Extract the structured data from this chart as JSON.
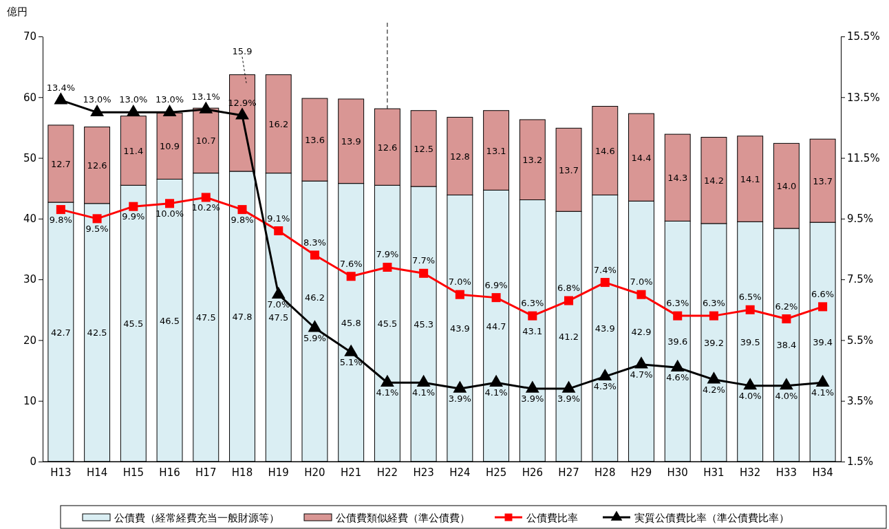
{
  "chart_data": {
    "type": "bar",
    "stacked": true,
    "ylabel": "億円",
    "categories": [
      "H13",
      "H14",
      "H15",
      "H16",
      "H17",
      "H18",
      "H19",
      "H20",
      "H21",
      "H22",
      "H23",
      "H24",
      "H25",
      "H26",
      "H27",
      "H28",
      "H29",
      "H30",
      "H31",
      "H32",
      "H33",
      "H34"
    ],
    "ylim": [
      0,
      70
    ],
    "yticks": [
      0,
      10,
      20,
      30,
      40,
      50,
      60,
      70
    ],
    "y2lim": [
      1.5,
      15.5
    ],
    "y2ticks": [
      {
        "value": 1.5,
        "label": "1.5%"
      },
      {
        "value": 3.5,
        "label": "3.5%"
      },
      {
        "value": 5.5,
        "label": "5.5%"
      },
      {
        "value": 7.5,
        "label": "7.5%"
      },
      {
        "value": 9.5,
        "label": "9.5%"
      },
      {
        "value": 11.5,
        "label": "11.5%"
      },
      {
        "value": 13.5,
        "label": "13.5%"
      },
      {
        "value": 15.5,
        "label": "15.5%"
      }
    ],
    "legend": "bottom",
    "grid": false,
    "ref_lines": [
      {
        "axis": "x",
        "value": "H22",
        "line_style": "dashed",
        "color": "#000000"
      }
    ],
    "series": [
      {
        "name": "公債費（経常経費充当一般財源等）",
        "color": "#daeef3",
        "values": [
          42.7,
          42.5,
          45.5,
          46.5,
          47.5,
          47.8,
          47.5,
          46.2,
          45.8,
          45.5,
          45.3,
          43.9,
          44.7,
          43.1,
          41.2,
          43.9,
          42.9,
          39.6,
          39.2,
          39.5,
          38.4,
          39.4
        ],
        "value_labels": [
          "42.7",
          "42.5",
          "45.5",
          "46.5",
          "47.5",
          "47.8",
          "47.5",
          "46.2",
          "45.8",
          "45.5",
          "45.3",
          "43.9",
          "44.7",
          "43.1",
          "41.2",
          "43.9",
          "42.9",
          "39.6",
          "39.2",
          "39.5",
          "38.4",
          "39.4"
        ]
      },
      {
        "name": "公債費類似経費（準公債費）",
        "color": "#d99694",
        "values": [
          12.7,
          12.6,
          11.4,
          10.9,
          10.7,
          15.9,
          16.2,
          13.6,
          13.9,
          12.6,
          12.5,
          12.8,
          13.1,
          13.2,
          13.7,
          14.6,
          14.4,
          14.3,
          14.2,
          14.1,
          14.0,
          13.7
        ],
        "value_labels": [
          "12.7",
          "12.6",
          "11.4",
          "10.9",
          "10.7",
          "15.9",
          "16.2",
          "13.6",
          "13.9",
          "12.6",
          "12.5",
          "12.8",
          "13.1",
          "13.2",
          "13.7",
          "14.6",
          "14.4",
          "14.3",
          "14.2",
          "14.1",
          "14.0",
          "13.7"
        ]
      },
      {
        "name": "公債費比率",
        "type": "line",
        "axis": "y2",
        "color": "#ff0000",
        "marker": "square",
        "values": [
          9.8,
          9.5,
          9.9,
          10.0,
          10.2,
          9.8,
          9.1,
          8.3,
          7.6,
          7.9,
          7.7,
          7.0,
          6.9,
          6.3,
          6.8,
          7.4,
          7.0,
          6.3,
          6.3,
          6.5,
          6.2,
          6.6
        ],
        "value_labels": [
          "9.8%",
          "9.5%",
          "9.9%",
          "10.0%",
          "10.2%",
          "9.8%",
          "9.1%",
          "8.3%",
          "7.6%",
          "7.9%",
          "7.7%",
          "7.0%",
          "6.9%",
          "6.3%",
          "6.8%",
          "7.4%",
          "7.0%",
          "6.3%",
          "6.3%",
          "6.5%",
          "6.2%",
          "6.6%"
        ]
      },
      {
        "name": "実質公債費比率（準公債費比率）",
        "type": "line",
        "axis": "y2",
        "color": "#000000",
        "marker": "triangle",
        "values": [
          13.4,
          13.0,
          13.0,
          13.0,
          13.1,
          12.9,
          7.0,
          5.9,
          5.1,
          4.1,
          4.1,
          3.9,
          4.1,
          3.9,
          3.9,
          4.3,
          4.7,
          4.6,
          4.2,
          4.0,
          4.0,
          4.1
        ],
        "value_labels": [
          "13.4%",
          "13.0%",
          "13.0%",
          "13.0%",
          "13.1%",
          "12.9%",
          "7.0%",
          "5.9%",
          "5.1%",
          "4.1%",
          "4.1%",
          "3.9%",
          "4.1%",
          "3.9%",
          "3.9%",
          "4.3%",
          "4.7%",
          "4.6%",
          "4.2%",
          "4.0%",
          "4.0%",
          "4.1%"
        ]
      }
    ]
  }
}
